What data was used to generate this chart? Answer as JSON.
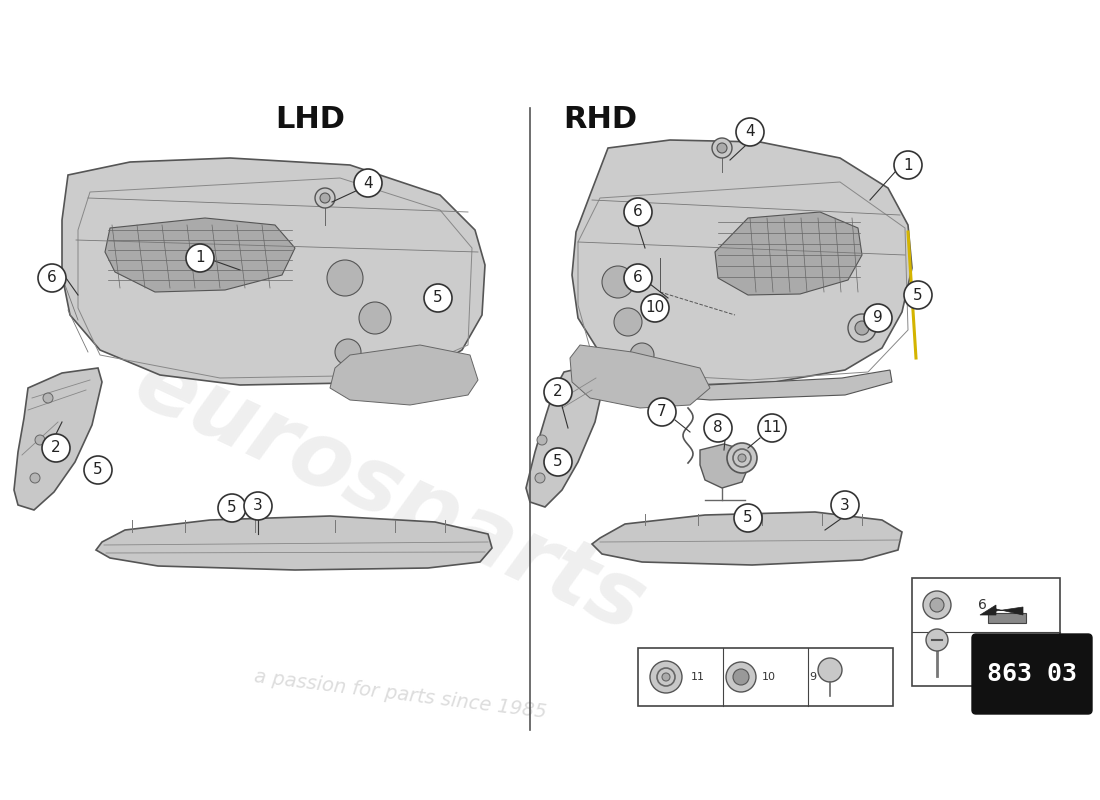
{
  "bg_color": "#ffffff",
  "lhd_label": "LHD",
  "rhd_label": "RHD",
  "part_number_box": "863 03",
  "watermark_text": "eurosparts",
  "watermark_subtext": "a passion for parts since 1985",
  "line_color": "#333333",
  "part_fill_color": "#c8c8c8",
  "part_edge_color": "#555555"
}
